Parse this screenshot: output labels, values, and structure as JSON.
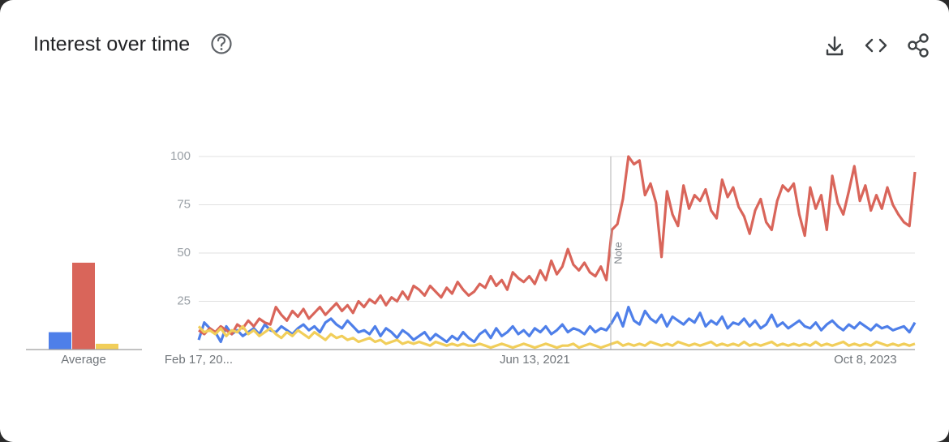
{
  "header": {
    "title": "Interest over time"
  },
  "chart_data": {
    "type": "line",
    "note": "Note",
    "categories": [
      "Feb 17, 20...",
      null,
      null,
      null,
      null,
      null,
      null,
      null,
      null,
      null,
      null,
      null,
      null,
      null,
      null,
      null,
      null,
      null,
      null,
      null,
      null,
      null,
      null,
      null,
      null,
      null,
      null,
      null,
      null,
      null,
      null,
      null,
      null,
      null,
      null,
      null,
      null,
      null,
      null,
      null,
      null,
      null,
      null,
      null,
      null,
      null,
      null,
      null,
      null,
      null,
      null,
      null,
      null,
      null,
      null,
      null,
      null,
      null,
      null,
      null,
      null,
      "Jun 13, 2021",
      null,
      null,
      null,
      null,
      null,
      null,
      null,
      null,
      null,
      null,
      null,
      null,
      null,
      null,
      null,
      null,
      null,
      null,
      null,
      null,
      null,
      null,
      null,
      null,
      null,
      null,
      null,
      null,
      null,
      null,
      null,
      null,
      null,
      null,
      null,
      null,
      null,
      null,
      null,
      null,
      null,
      null,
      null,
      null,
      null,
      null,
      null,
      null,
      null,
      null,
      null,
      null,
      null,
      null,
      null,
      null,
      null,
      null,
      null,
      "Oct 8, 2023",
      null,
      null,
      null,
      null,
      null,
      null,
      null,
      null,
      null
    ],
    "series": [
      {
        "color": "#4e7fe9",
        "values": [
          5,
          14,
          11,
          9,
          4,
          12,
          8,
          10,
          7,
          9,
          11,
          8,
          13,
          10,
          9,
          12,
          10,
          8,
          11,
          13,
          10,
          12,
          9,
          14,
          16,
          13,
          11,
          15,
          12,
          9,
          10,
          8,
          12,
          7,
          11,
          9,
          6,
          10,
          8,
          5,
          7,
          9,
          5,
          8,
          6,
          4,
          7,
          5,
          9,
          6,
          4,
          8,
          10,
          6,
          11,
          7,
          9,
          12,
          8,
          10,
          7,
          11,
          9,
          12,
          8,
          10,
          13,
          9,
          11,
          10,
          8,
          12,
          9,
          11,
          10,
          14,
          19,
          12,
          22,
          15,
          13,
          20,
          16,
          14,
          18,
          12,
          17,
          15,
          13,
          16,
          14,
          19,
          12,
          15,
          13,
          17,
          11,
          14,
          13,
          16,
          12,
          15,
          11,
          13,
          18,
          12,
          14,
          11,
          13,
          15,
          12,
          11,
          14,
          10,
          13,
          15,
          12,
          10,
          13,
          11,
          14,
          12,
          10,
          13,
          11,
          12,
          10,
          11,
          12,
          9,
          14
        ]
      },
      {
        "color": "#d9655a",
        "values": [
          10,
          8,
          11,
          9,
          12,
          10,
          8,
          13,
          11,
          15,
          12,
          16,
          14,
          13,
          22,
          18,
          15,
          20,
          17,
          21,
          16,
          19,
          22,
          18,
          21,
          24,
          20,
          23,
          19,
          25,
          22,
          26,
          24,
          28,
          23,
          27,
          25,
          30,
          26,
          33,
          31,
          28,
          33,
          30,
          27,
          32,
          29,
          35,
          31,
          28,
          30,
          34,
          32,
          38,
          33,
          36,
          31,
          40,
          37,
          35,
          38,
          34,
          41,
          36,
          46,
          39,
          43,
          52,
          44,
          41,
          45,
          40,
          38,
          43,
          36,
          62,
          65,
          78,
          100,
          96,
          98,
          80,
          86,
          76,
          48,
          82,
          70,
          64,
          85,
          73,
          80,
          77,
          83,
          72,
          68,
          88,
          79,
          84,
          74,
          69,
          60,
          72,
          78,
          66,
          62,
          77,
          85,
          82,
          86,
          70,
          59,
          84,
          73,
          80,
          62,
          90,
          76,
          70,
          82,
          95,
          77,
          85,
          72,
          80,
          73,
          84,
          75,
          70,
          66,
          64,
          92
        ]
      },
      {
        "color": "#f1ce5a",
        "values": [
          12,
          9,
          10,
          8,
          11,
          7,
          10,
          9,
          12,
          8,
          10,
          7,
          9,
          11,
          8,
          6,
          9,
          7,
          10,
          8,
          6,
          9,
          7,
          5,
          8,
          6,
          7,
          5,
          6,
          4,
          5,
          6,
          4,
          5,
          3,
          4,
          5,
          3,
          4,
          3,
          4,
          3,
          2,
          4,
          3,
          2,
          3,
          2,
          3,
          2,
          2,
          3,
          2,
          1,
          2,
          3,
          2,
          1,
          2,
          3,
          2,
          1,
          2,
          3,
          2,
          1,
          2,
          2,
          3,
          1,
          2,
          3,
          2,
          1,
          2,
          3,
          4,
          2,
          3,
          2,
          3,
          2,
          4,
          3,
          2,
          3,
          2,
          4,
          3,
          2,
          3,
          2,
          3,
          4,
          2,
          3,
          2,
          3,
          2,
          4,
          2,
          3,
          2,
          3,
          4,
          2,
          3,
          2,
          3,
          2,
          3,
          2,
          4,
          2,
          3,
          2,
          3,
          4,
          2,
          3,
          2,
          3,
          2,
          4,
          3,
          2,
          3,
          2,
          3,
          2,
          3
        ]
      }
    ],
    "average": {
      "label": "Average",
      "values": [
        9,
        45,
        3
      ]
    },
    "ylim": [
      0,
      100
    ],
    "yticks": [
      25,
      50,
      75,
      100
    ],
    "grid": true
  }
}
